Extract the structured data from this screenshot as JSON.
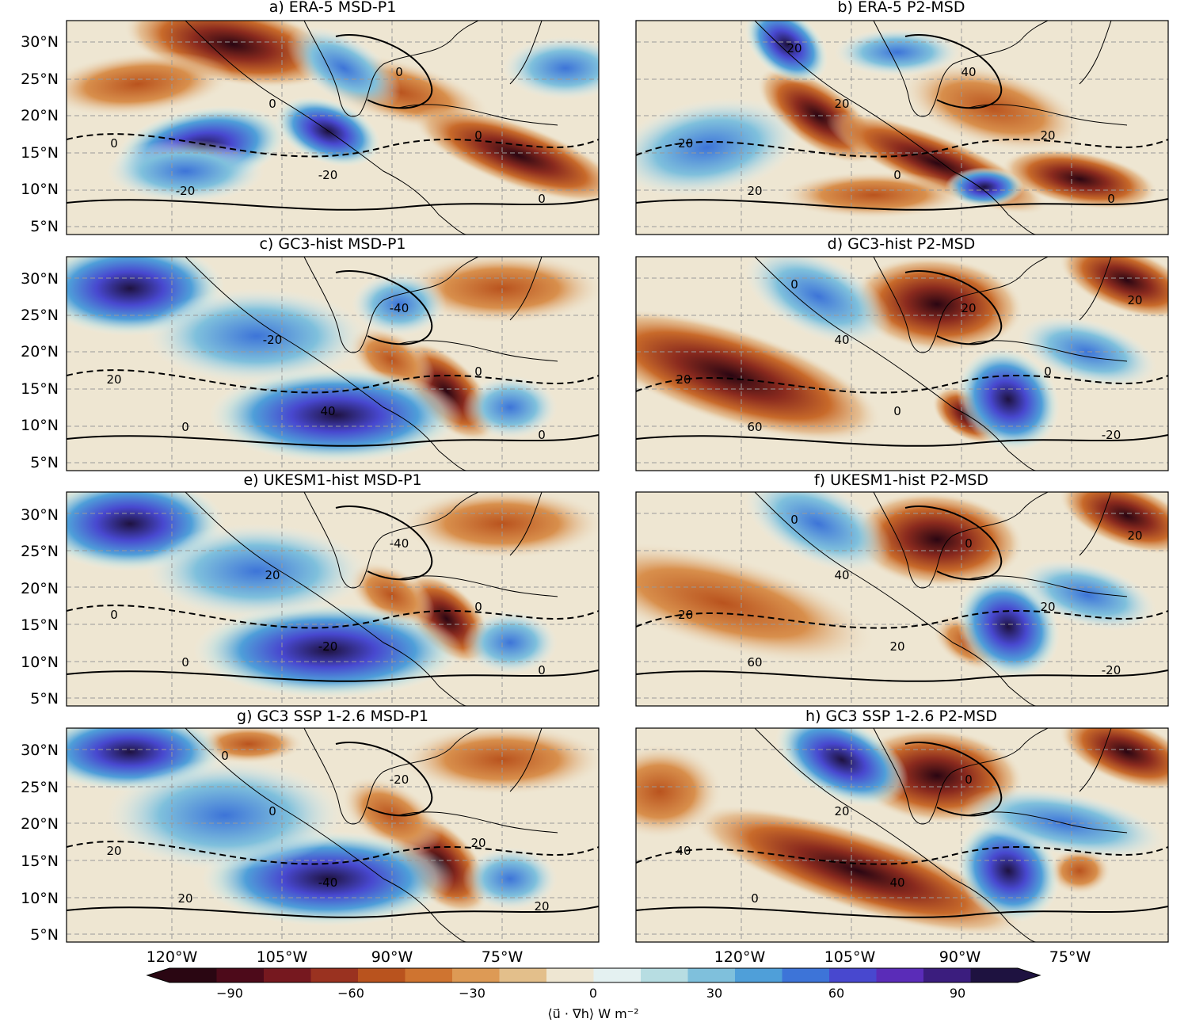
{
  "panels": [
    {
      "title": "a) ERA-5 MSD-P1",
      "contour_labels": [
        "0",
        "-20",
        "0",
        "-20",
        "0",
        "0",
        "0"
      ]
    },
    {
      "title": "b) ERA-5 P2-MSD",
      "contour_labels": [
        "-20",
        "20",
        "20",
        "0",
        "40",
        "20",
        "0",
        "20"
      ]
    },
    {
      "title": "c) GC3-hist MSD-P1",
      "contour_labels": [
        "20",
        "0",
        "-20",
        "40",
        "-40",
        "0",
        "0"
      ]
    },
    {
      "title": "d) GC3-hist P2-MSD",
      "contour_labels": [
        "20",
        "60",
        "40",
        "0",
        "20",
        "0",
        "-20",
        "0",
        "20"
      ]
    },
    {
      "title": "e) UKESM1-hist MSD-P1",
      "contour_labels": [
        "0",
        "0",
        "20",
        "-20",
        "-40",
        "0",
        "0"
      ]
    },
    {
      "title": "f) UKESM1-hist P2-MSD",
      "contour_labels": [
        "-20",
        "60",
        "40",
        "20",
        "0",
        "20",
        "-20",
        "0",
        "20"
      ]
    },
    {
      "title": "g) GC3 SSP 1-2.6 MSD-P1",
      "contour_labels": [
        "20",
        "20",
        "0",
        "-40",
        "-20",
        "20",
        "20",
        "0"
      ]
    },
    {
      "title": "h) GC3 SSP 1-2.6 P2-MSD",
      "contour_labels": [
        "40",
        "0",
        "20",
        "40",
        "0"
      ]
    }
  ],
  "lat_ticks": [
    "30°N",
    "25°N",
    "20°N",
    "15°N",
    "10°N",
    "5°N"
  ],
  "lon_ticks": [
    "120°W",
    "105°W",
    "90°W",
    "75°W"
  ],
  "colorbar": {
    "ticks": [
      "−90",
      "−60",
      "−30",
      "0",
      "30",
      "60",
      "90"
    ],
    "label": "⟨u⃗ · ∇h⟩ W m⁻²",
    "colors": [
      "#2a0612",
      "#4d0a1a",
      "#76181f",
      "#9a3220",
      "#b9531e",
      "#cf7430",
      "#dd9a55",
      "#e3bf8b",
      "#eee6d2",
      "#e4f1f1",
      "#b7dde2",
      "#7fc0dc",
      "#4f9fd9",
      "#3d74d8",
      "#4848cf",
      "#5a2cb8",
      "#3b1d7e",
      "#1e1240"
    ],
    "extend": "both"
  },
  "colors": {
    "neg_strong": "#2a0612",
    "neg_mid": "#b9531e",
    "neutral": "#eee6d2",
    "pos_mid": "#7fc0dc",
    "pos_strong": "#3b1d7e",
    "contour": "#000000",
    "gridline": "#999999"
  }
}
